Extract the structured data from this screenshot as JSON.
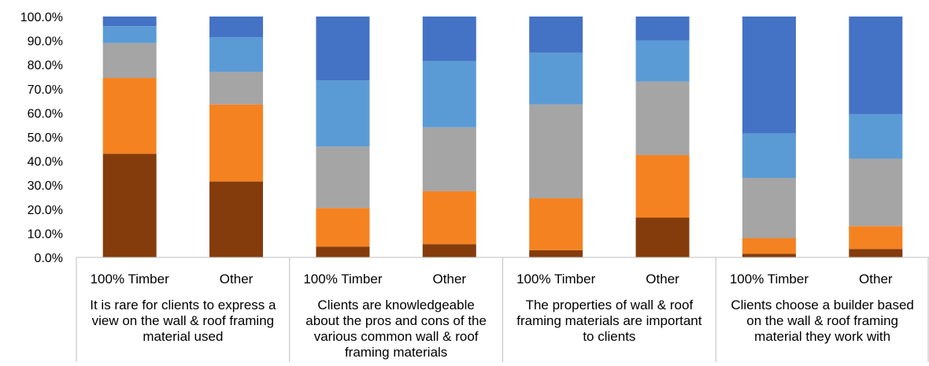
{
  "chart_data": {
    "type": "bar",
    "stacked": true,
    "percent_stacked": true,
    "ylim": [
      0,
      100
    ],
    "yticks": [
      "0.0%",
      "10.0%",
      "20.0%",
      "30.0%",
      "40.0%",
      "50.0%",
      "60.0%",
      "70.0%",
      "80.0%",
      "90.0%",
      "100.0%"
    ],
    "grid": false,
    "legend": "none",
    "groups": [
      {
        "label_lines": [
          "It is rare for clients to express a",
          "view on the wall & roof framing",
          "material used"
        ],
        "bars": [
          {
            "label": "100% Timber",
            "values": [
              43.0,
              31.5,
              14.5,
              7.0,
              4.0
            ]
          },
          {
            "label": "Other",
            "values": [
              31.5,
              32.0,
              13.5,
              14.5,
              8.5
            ]
          }
        ]
      },
      {
        "label_lines": [
          "Clients are knowledgeable",
          "about the pros and cons of the",
          "various common wall & roof",
          "framing materials"
        ],
        "bars": [
          {
            "label": "100% Timber",
            "values": [
              4.5,
              16.0,
              25.5,
              27.5,
              26.5
            ]
          },
          {
            "label": "Other",
            "values": [
              5.5,
              22.0,
              26.5,
              27.5,
              18.5
            ]
          }
        ]
      },
      {
        "label_lines": [
          "The properties of wall & roof",
          "framing materials are important",
          "to clients"
        ],
        "bars": [
          {
            "label": "100% Timber",
            "values": [
              3.0,
              21.5,
              39.0,
              21.5,
              15.0
            ]
          },
          {
            "label": "Other",
            "values": [
              16.5,
              26.0,
              30.5,
              17.0,
              10.0
            ]
          }
        ]
      },
      {
        "label_lines": [
          "Clients choose a builder based",
          "on the wall & roof framing",
          "material they work with"
        ],
        "bars": [
          {
            "label": "100% Timber",
            "values": [
              1.5,
              6.5,
              25.0,
              18.5,
              48.5
            ]
          },
          {
            "label": "Other",
            "values": [
              3.5,
              9.5,
              28.0,
              18.5,
              40.5
            ]
          }
        ]
      }
    ],
    "segment_colors": [
      "#843C0C",
      "#F58220",
      "#A5A5A5",
      "#5B9BD5",
      "#4472C4"
    ]
  }
}
